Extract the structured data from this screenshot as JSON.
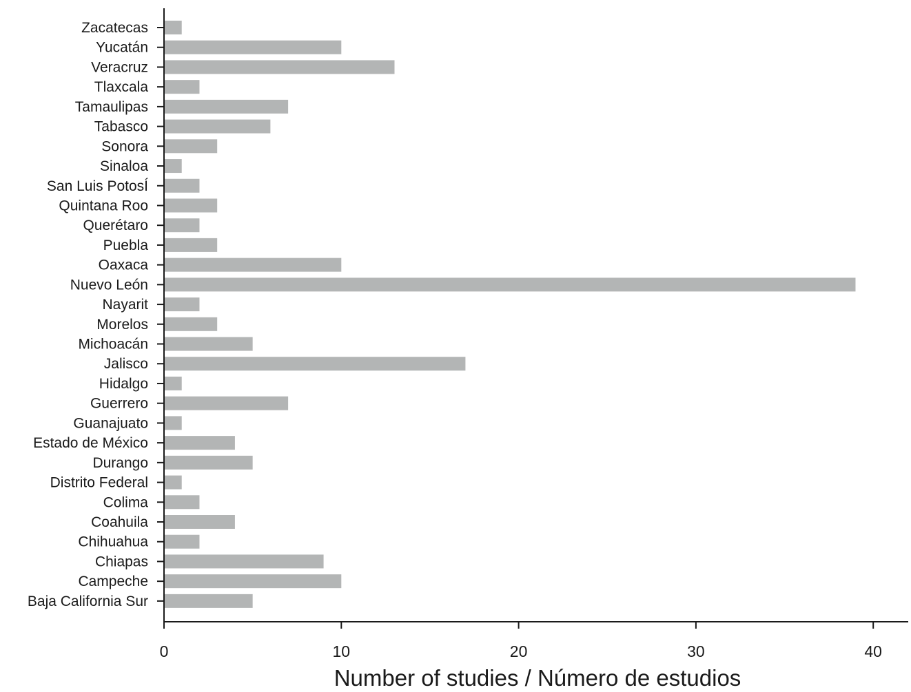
{
  "chart_data": {
    "type": "bar",
    "orientation": "horizontal",
    "categories": [
      "Zacatecas",
      "Yucatán",
      "Veracruz",
      "Tlaxcala",
      "Tamaulipas",
      "Tabasco",
      "Sonora",
      "Sinaloa",
      "San Luis PotosÍ",
      "Quintana Roo",
      "Querétaro",
      "Puebla",
      "Oaxaca",
      "Nuevo León",
      "Nayarit",
      "Morelos",
      "Michoacán",
      "Jalisco",
      "Hidalgo",
      "Guerrero",
      "Guanajuato",
      "Estado de México",
      "Durango",
      "Distrito Federal",
      "Colima",
      "Coahuila",
      "Chihuahua",
      "Chiapas",
      "Campeche",
      "Baja California Sur"
    ],
    "values": [
      1,
      10,
      13,
      2,
      7,
      6,
      3,
      1,
      2,
      3,
      2,
      3,
      10,
      39,
      2,
      3,
      5,
      17,
      1,
      7,
      1,
      4,
      5,
      1,
      2,
      4,
      2,
      9,
      10,
      5
    ],
    "xlabel": "Number of studies / Número de estudios",
    "ylabel": "",
    "title": "",
    "xlim": [
      0,
      42
    ],
    "xticks": [
      0,
      10,
      20,
      30,
      40
    ],
    "grid": false,
    "bar_color": "#b3b5b5"
  }
}
